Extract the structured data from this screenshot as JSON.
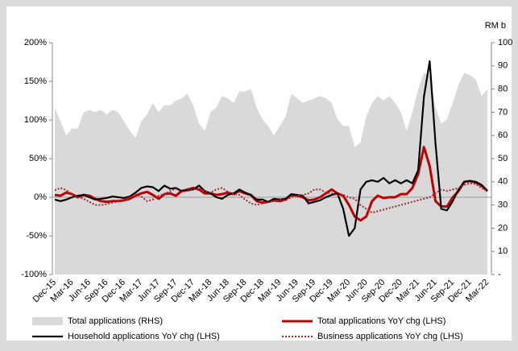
{
  "chart_data": {
    "type": "line",
    "categories": [
      "Dec-15",
      null,
      null,
      "Mar-16",
      null,
      null,
      "Jun-16",
      null,
      null,
      "Sep-16",
      null,
      null,
      "Dec-16",
      null,
      null,
      "Mar-17",
      null,
      null,
      "Jun-17",
      null,
      null,
      "Sep-17",
      null,
      null,
      "Dec-17",
      null,
      null,
      "Mar-18",
      null,
      null,
      "Jun-18",
      null,
      null,
      "Sep-18",
      null,
      null,
      "Dec-18",
      null,
      null,
      "Mar-19",
      null,
      null,
      "Jun-19",
      null,
      null,
      "Sep-19",
      null,
      null,
      "Dec-19",
      null,
      null,
      "Mar-20",
      null,
      null,
      "Jun-20",
      null,
      null,
      "Sep-20",
      null,
      null,
      "Dec-20",
      null,
      null,
      "Mar-21",
      null,
      null,
      "Jun-21",
      null,
      null,
      "Sep-21",
      null,
      null,
      "Dec-21",
      null,
      null,
      "Mar-22"
    ],
    "y2_label": "RM b",
    "ylim": [
      -100,
      200
    ],
    "yticks": [
      {
        "value": -100,
        "label": "-100%"
      },
      {
        "value": -50,
        "label": "-50%"
      },
      {
        "value": 0,
        "label": "0%"
      },
      {
        "value": 50,
        "label": "50%"
      },
      {
        "value": 100,
        "label": "100%"
      },
      {
        "value": 150,
        "label": "150%"
      },
      {
        "value": 200,
        "label": "200%"
      }
    ],
    "y2lim": [
      0,
      100
    ],
    "y2ticks": [
      {
        "value": 0,
        "label": "-"
      },
      10,
      20,
      30,
      40,
      50,
      60,
      70,
      80,
      90,
      100
    ],
    "series": [
      {
        "name": "Total applications (RHS)",
        "kind": "area",
        "axis": "y2",
        "color": "#d9d9d9",
        "values": [
          72,
          66,
          60,
          63,
          63,
          70,
          71,
          70,
          71,
          69,
          71,
          70,
          66,
          62,
          59,
          66,
          69,
          74,
          70,
          73,
          73,
          75,
          76,
          78,
          73,
          65,
          62,
          70,
          72,
          77,
          76,
          74,
          79,
          79,
          80,
          72,
          67,
          64,
          60,
          64,
          68,
          78,
          76,
          74,
          75,
          76,
          77,
          76,
          74,
          67,
          64,
          64,
          55,
          57,
          68,
          74,
          77,
          75,
          77,
          74,
          70,
          62,
          70,
          80,
          87,
          86,
          72,
          65,
          67,
          74,
          82,
          87,
          86,
          84,
          77,
          80
        ]
      },
      {
        "name": "Total applications YoY chg (LHS)",
        "kind": "line",
        "color": "#c00000",
        "width": 3,
        "values": [
          3,
          2,
          6,
          4,
          0,
          3,
          2,
          -2,
          -5,
          -6,
          -5,
          -5,
          -4,
          -2,
          2,
          5,
          7,
          3,
          -2,
          4,
          5,
          2,
          8,
          10,
          12,
          10,
          5,
          5,
          3,
          4,
          6,
          4,
          8,
          5,
          3,
          -5,
          -7,
          -6,
          -4,
          -5,
          -3,
          3,
          2,
          0,
          -4,
          -3,
          0,
          5,
          10,
          5,
          2,
          -10,
          -25,
          -30,
          -25,
          -5,
          2,
          -1,
          0,
          0,
          4,
          4,
          12,
          30,
          65,
          40,
          -5,
          -12,
          -12,
          0,
          8,
          20,
          21,
          19,
          15,
          8
        ]
      },
      {
        "name": "Household applications YoY chg (LHS)",
        "kind": "line",
        "color": "#000000",
        "width": 2.2,
        "values": [
          -3,
          -5,
          -3,
          0,
          2,
          3,
          0,
          -3,
          -2,
          -1,
          1,
          0,
          -1,
          1,
          6,
          12,
          14,
          13,
          8,
          15,
          11,
          12,
          8,
          9,
          10,
          15,
          8,
          5,
          0,
          -2,
          3,
          5,
          10,
          6,
          3,
          -3,
          -3,
          -6,
          -2,
          -3,
          -2,
          4,
          3,
          2,
          -8,
          -6,
          -4,
          0,
          3,
          5,
          -15,
          -50,
          -40,
          10,
          20,
          22,
          20,
          25,
          18,
          22,
          18,
          22,
          18,
          35,
          130,
          176,
          70,
          -15,
          -17,
          -5,
          10,
          20,
          21,
          20,
          16,
          8
        ]
      },
      {
        "name": "Business applications YoY chg (LHS)",
        "kind": "line",
        "color": "#a52a2a",
        "width": 2,
        "dash": "2 2",
        "values": [
          9,
          12,
          9,
          4,
          0,
          -2,
          -6,
          -10,
          -10,
          -9,
          -7,
          -5,
          -3,
          0,
          4,
          1,
          -5,
          -3,
          2,
          4,
          8,
          11,
          7,
          8,
          10,
          12,
          8,
          6,
          10,
          12,
          7,
          4,
          3,
          -3,
          -8,
          -10,
          -8,
          -6,
          -5,
          -3,
          -4,
          0,
          2,
          3,
          5,
          10,
          10,
          6,
          5,
          2,
          3,
          0,
          -2,
          -10,
          -15,
          -20,
          -18,
          -16,
          -14,
          -12,
          -10,
          -8,
          -6,
          -4,
          -2,
          0,
          5,
          10,
          8,
          10,
          12,
          16,
          18,
          17,
          12,
          8
        ]
      }
    ]
  }
}
